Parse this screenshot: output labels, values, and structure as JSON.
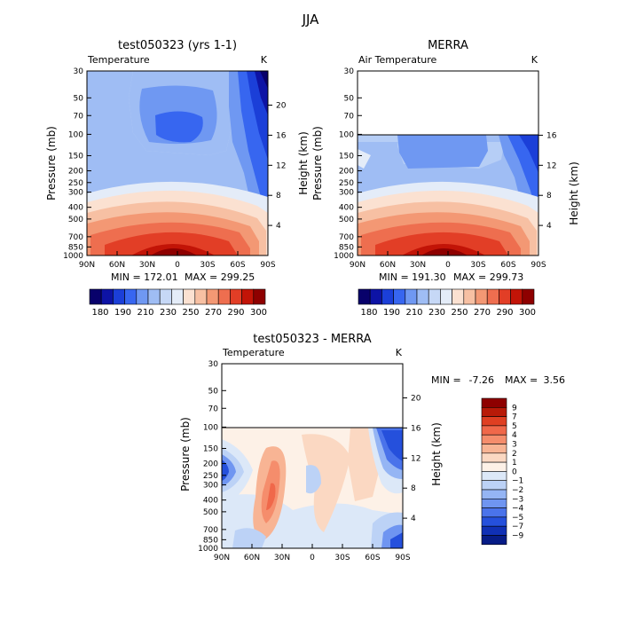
{
  "page": {
    "title": "JJA"
  },
  "chart_data": [
    {
      "type": "heatmap",
      "title": "test050323 (yrs 1-1)",
      "variable": "Temperature",
      "units": "K",
      "ylabel": "Pressure (mb)",
      "ylabel_right": "Height (km)",
      "x_ticks": [
        "90N",
        "60N",
        "30N",
        "0",
        "30S",
        "60S",
        "90S"
      ],
      "y_ticks": [
        "30",
        "50",
        "70",
        "100",
        "150",
        "200",
        "250",
        "300",
        "400",
        "500",
        "700",
        "850",
        "1000"
      ],
      "height_ticks": [
        "20",
        "16",
        "12",
        "8",
        "4"
      ],
      "data_top_pressure": 30,
      "min_text": "MIN = 172.01",
      "max_text": "MAX = 299.25",
      "colorbar_labels": [
        "180",
        "190",
        "210",
        "230",
        "250",
        "270",
        "290",
        "300"
      ]
    },
    {
      "type": "heatmap",
      "title": "MERRA",
      "variable": "Air Temperature",
      "units": "K",
      "ylabel": "Pressure (mb)",
      "ylabel_right": "Height (km)",
      "x_ticks": [
        "90N",
        "60N",
        "30N",
        "0",
        "30S",
        "60S",
        "90S"
      ],
      "y_ticks": [
        "30",
        "50",
        "70",
        "100",
        "150",
        "200",
        "250",
        "300",
        "400",
        "500",
        "700",
        "850",
        "1000"
      ],
      "height_ticks": [
        "16",
        "12",
        "8",
        "4"
      ],
      "data_top_pressure": 100,
      "min_text": "MIN = 191.30",
      "max_text": "MAX = 299.73",
      "colorbar_labels": [
        "180",
        "190",
        "210",
        "230",
        "250",
        "270",
        "290",
        "300"
      ]
    },
    {
      "type": "heatmap",
      "title": "test050323 - MERRA",
      "variable": "Temperature",
      "units": "K",
      "ylabel": "Pressure (mb)",
      "ylabel_right": "Height (km)",
      "x_ticks": [
        "90N",
        "60N",
        "30N",
        "0",
        "30S",
        "60S",
        "90S"
      ],
      "y_ticks": [
        "30",
        "50",
        "70",
        "100",
        "150",
        "200",
        "250",
        "300",
        "400",
        "500",
        "700",
        "850",
        "1000"
      ],
      "height_ticks": [
        "20",
        "16",
        "12",
        "8",
        "4"
      ],
      "data_top_pressure": 100,
      "min_label": "MIN =",
      "min_value": "-7.26",
      "max_label": "MAX =",
      "max_value": "3.56",
      "colorbar_labels": [
        "9",
        "7",
        "5",
        "4",
        "3",
        "2",
        "1",
        "0",
        "−1",
        "−2",
        "−3",
        "−4",
        "−5",
        "−7",
        "−9"
      ]
    }
  ],
  "colors": {
    "temp_scale": [
      "#08016b",
      "#0d13a5",
      "#1b3fd8",
      "#3766f0",
      "#6f98f2",
      "#9fbdf4",
      "#c6d8f6",
      "#e4ecf8",
      "#fbe1d1",
      "#f7c0a3",
      "#f39874",
      "#ee6e4f",
      "#e23e26",
      "#c21407",
      "#8e0000"
    ],
    "diff_scale": [
      "#8e0000",
      "#b81a08",
      "#df3f22",
      "#f0684a",
      "#f58d6c",
      "#f8b494",
      "#fbd8c2",
      "#fdf1e7",
      "#dce8f8",
      "#bcd2f6",
      "#95b5f4",
      "#6f95f1",
      "#4a73ea",
      "#2550dc",
      "#1030b5",
      "#071c87"
    ]
  }
}
